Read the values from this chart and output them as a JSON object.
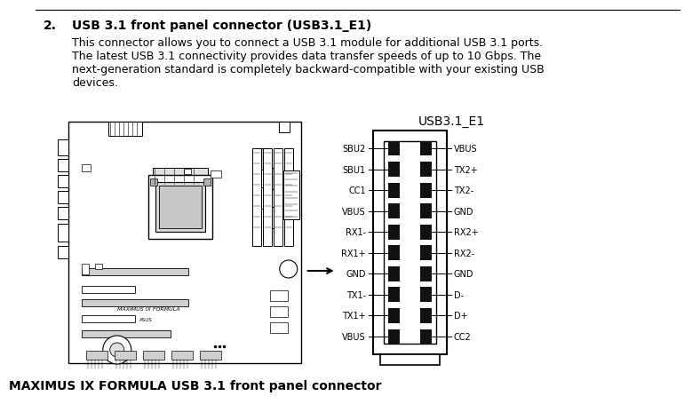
{
  "title_number": "2.",
  "title_text": "USB 3.1 front panel connector (USB3.1_E1)",
  "body_lines": [
    "This connector allows you to connect a USB 3.1 module for additional USB 3.1 ports.",
    "The latest USB 3.1 connectivity provides data transfer speeds of up to 10 Gbps. The",
    "next-generation standard is completely backward-compatible with your existing USB",
    "devices."
  ],
  "connector_title": "USB3.1_E1",
  "caption": "MAXIMUS IX FORMULA USB 3.1 front panel connector",
  "left_pins": [
    "SBU2",
    "SBU1",
    "CC1",
    "VBUS",
    "RX1-",
    "RX1+",
    "GND",
    "TX1-",
    "TX1+",
    "VBUS"
  ],
  "right_pins": [
    "VBUS",
    "TX2+",
    "TX2-",
    "GND",
    "RX2+",
    "RX2-",
    "GND",
    "D-",
    "D+",
    "CC2"
  ],
  "bg_color": "#ffffff",
  "text_color": "#000000"
}
